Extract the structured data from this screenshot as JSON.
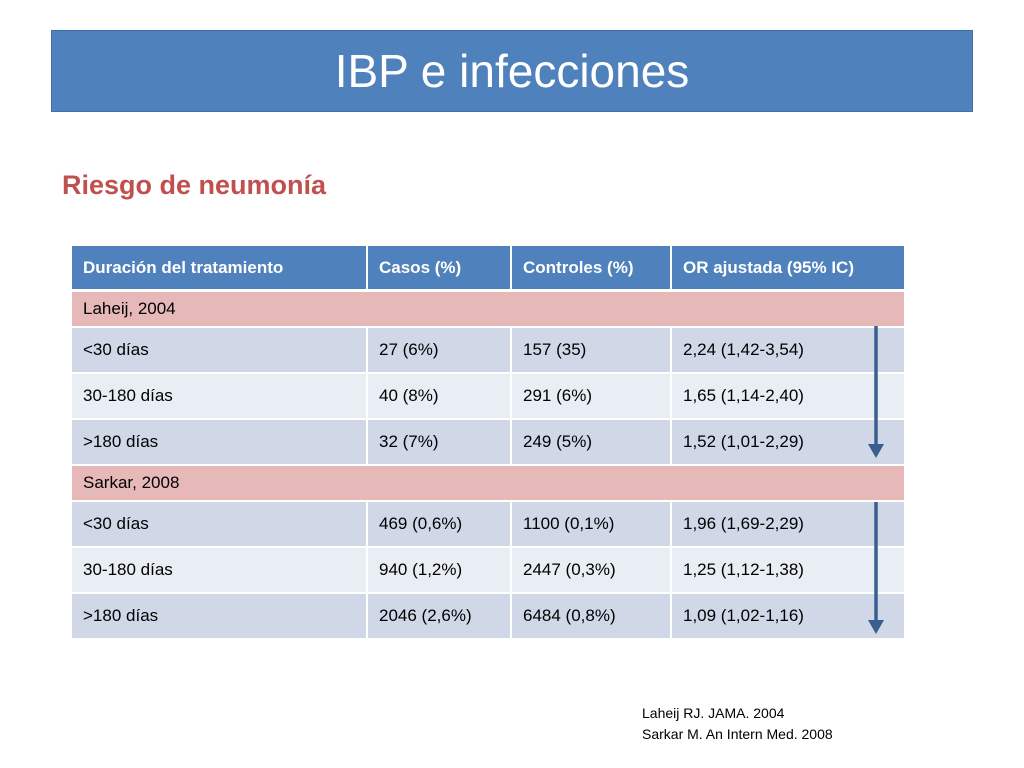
{
  "slide": {
    "title": "IBP e infecciones",
    "subtitle": "Riesgo de neumonía"
  },
  "table": {
    "headers": [
      "Duración del tratamiento",
      "Casos (%)",
      "Controles (%)",
      "OR ajustada (95% IC)"
    ],
    "groups": [
      {
        "label": "Laheij, 2004",
        "rows": [
          [
            "<30 días",
            "27 (6%)",
            "157 (35)",
            "2,24 (1,42-3,54)"
          ],
          [
            "30-180 días",
            "40 (8%)",
            "291 (6%)",
            "1,65 (1,14-2,40)"
          ],
          [
            ">180 días",
            "32 (7%)",
            "249 (5%)",
            "1,52 (1,01-2,29)"
          ]
        ]
      },
      {
        "label": "Sarkar, 2008",
        "rows": [
          [
            "<30 días",
            "469 (0,6%)",
            "1100 (0,1%)",
            "1,96 (1,69-2,29)"
          ],
          [
            "30-180 días",
            "940 (1,2%)",
            "2447 (0,3%)",
            "1,25 (1,12-1,38)"
          ],
          [
            ">180 días",
            "2046 (2,6%)",
            "6484 (0,8%)",
            "1,09 (1,02-1,16)"
          ]
        ]
      }
    ]
  },
  "arrows": [
    {
      "icon": "down-arrow-icon",
      "color": "#3a5f8f"
    },
    {
      "icon": "down-arrow-icon",
      "color": "#3a5f8f"
    }
  ],
  "references": [
    "Laheij RJ. JAMA. 2004",
    "Sarkar M. An Intern Med. 2008"
  ],
  "colors": {
    "accent": "#4f81bd",
    "subtitle": "#c0504d",
    "group_row": "#e6b9b8",
    "row_dark": "#d0d8e8",
    "row_light": "#e9edf4"
  }
}
